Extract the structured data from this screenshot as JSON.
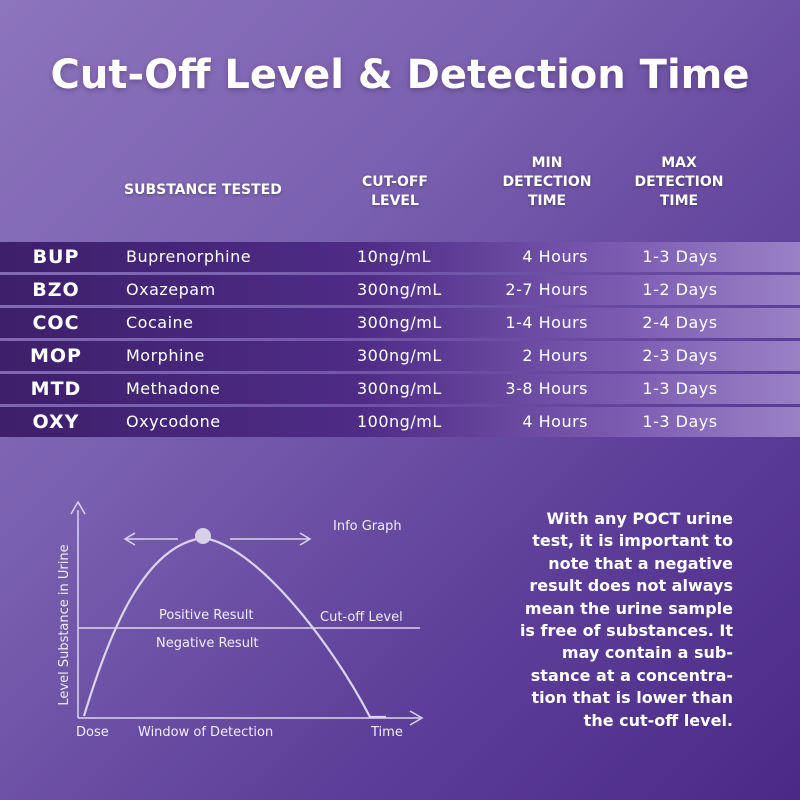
{
  "title": "Cut-Off Level & Detection Time",
  "headers": {
    "substance": "SUBSTANCE TESTED",
    "cutoff_1": "CUT-OFF",
    "cutoff_2": "LEVEL",
    "min_1": "MIN",
    "min_2": "DETECTION",
    "min_3": "TIME",
    "max_1": "MAX",
    "max_2": "DETECTION",
    "max_3": "TIME"
  },
  "rows": [
    {
      "code": "BUP",
      "name": "Buprenorphine",
      "cutoff": "10ng/mL",
      "min": "4 Hours",
      "max": "1-3 Days"
    },
    {
      "code": "BZO",
      "name": "Oxazepam",
      "cutoff": "300ng/mL",
      "min": "2-7 Hours",
      "max": "1-2 Days"
    },
    {
      "code": "COC",
      "name": "Cocaine",
      "cutoff": "300ng/mL",
      "min": "1-4 Hours",
      "max": "2-4 Days"
    },
    {
      "code": "MOP",
      "name": "Morphine",
      "cutoff": "300ng/mL",
      "min": "2 Hours",
      "max": "2-3 Days"
    },
    {
      "code": "MTD",
      "name": "Methadone",
      "cutoff": "300ng/mL",
      "min": "3-8 Hours",
      "max": "1-3 Days"
    },
    {
      "code": "OXY",
      "name": "Oxycodone",
      "cutoff": "100ng/mL",
      "min": "4 Hours",
      "max": "1-3 Days"
    }
  ],
  "graph": {
    "info_label": "Info Graph",
    "y_axis_label": "Level Substance in Urine",
    "positive_label": "Positive Result",
    "negative_label": "Negative Result",
    "cutoff_label": "Cut-off Level",
    "dose_label": "Dose",
    "window_label": "Window of Detection",
    "time_label": "Time"
  },
  "paragraph": [
    "With any POCT urine",
    "test, it is important to",
    "note that a negative",
    "result does not always",
    "mean the urine sample",
    "is free of substances. It",
    "may contain a sub-",
    "stance at a concentra-",
    "tion that is lower than",
    "the cut-off level."
  ],
  "colors": {
    "row_dark": "#3d1f6b",
    "row_light": "#9a81c6",
    "graph_line": "#ddd3ee"
  }
}
